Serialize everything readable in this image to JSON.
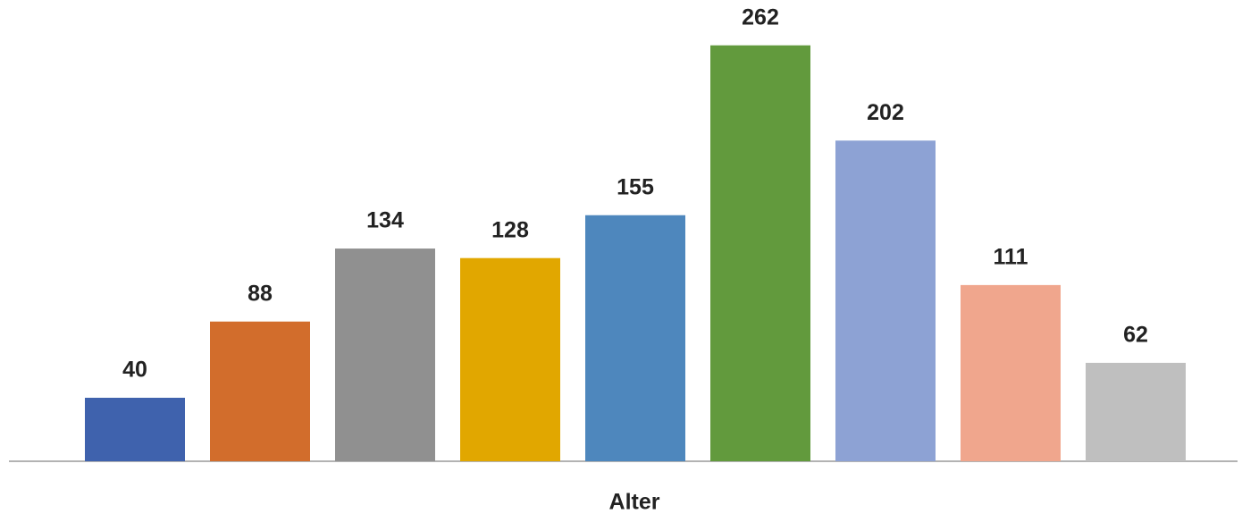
{
  "chart_data": {
    "type": "bar",
    "x_label": "Alter",
    "categories": [
      null,
      null,
      null,
      null,
      null,
      null,
      null,
      null,
      null
    ],
    "values": [
      40,
      88,
      134,
      128,
      155,
      262,
      202,
      111,
      62
    ],
    "colors": [
      "#3f62ad",
      "#d26d2c",
      "#909090",
      "#e1a700",
      "#4e87bd",
      "#629a3d",
      "#8da2d4",
      "#f0a68d",
      "#bfbfbf"
    ],
    "ylim": [
      0,
      290
    ],
    "grid": false
  }
}
